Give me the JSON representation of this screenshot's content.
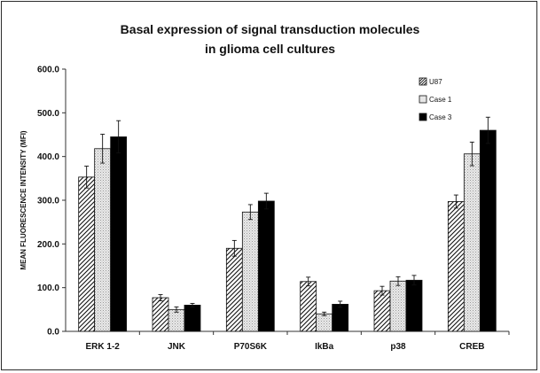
{
  "chart_data": {
    "type": "bar",
    "title": [
      "Basal expression of signal transduction molecules",
      "in glioma cell cultures"
    ],
    "xlabel": "",
    "ylabel": "MEAN FLUORESCENCE INTENSITY  (MFI)",
    "ylim": [
      0,
      600
    ],
    "yticks": [
      "0.0",
      "100.0",
      "200.0",
      "300.0",
      "400.0",
      "500.0",
      "600.0"
    ],
    "ytick_values": [
      0,
      100,
      200,
      300,
      400,
      500,
      600
    ],
    "grid": false,
    "legend_position": "top-right",
    "categories": [
      "ERK 1-2",
      "JNK",
      "P70S6K",
      "IkBa",
      "p38",
      "CREB"
    ],
    "series": [
      {
        "name": "U87",
        "pattern": "diagonal-hatch",
        "values": [
          353,
          77,
          190,
          114,
          93,
          297
        ],
        "errors": [
          25,
          7,
          18,
          10,
          10,
          15
        ]
      },
      {
        "name": "Case 1",
        "pattern": "light-dots",
        "values": [
          418,
          50,
          273,
          40,
          115,
          406
        ],
        "errors": [
          33,
          6,
          17,
          4,
          10,
          27
        ]
      },
      {
        "name": "Case 3",
        "pattern": "solid-black",
        "values": [
          445,
          60,
          298,
          62,
          117,
          460
        ],
        "errors": [
          37,
          4,
          18,
          7,
          11,
          30
        ]
      }
    ]
  }
}
